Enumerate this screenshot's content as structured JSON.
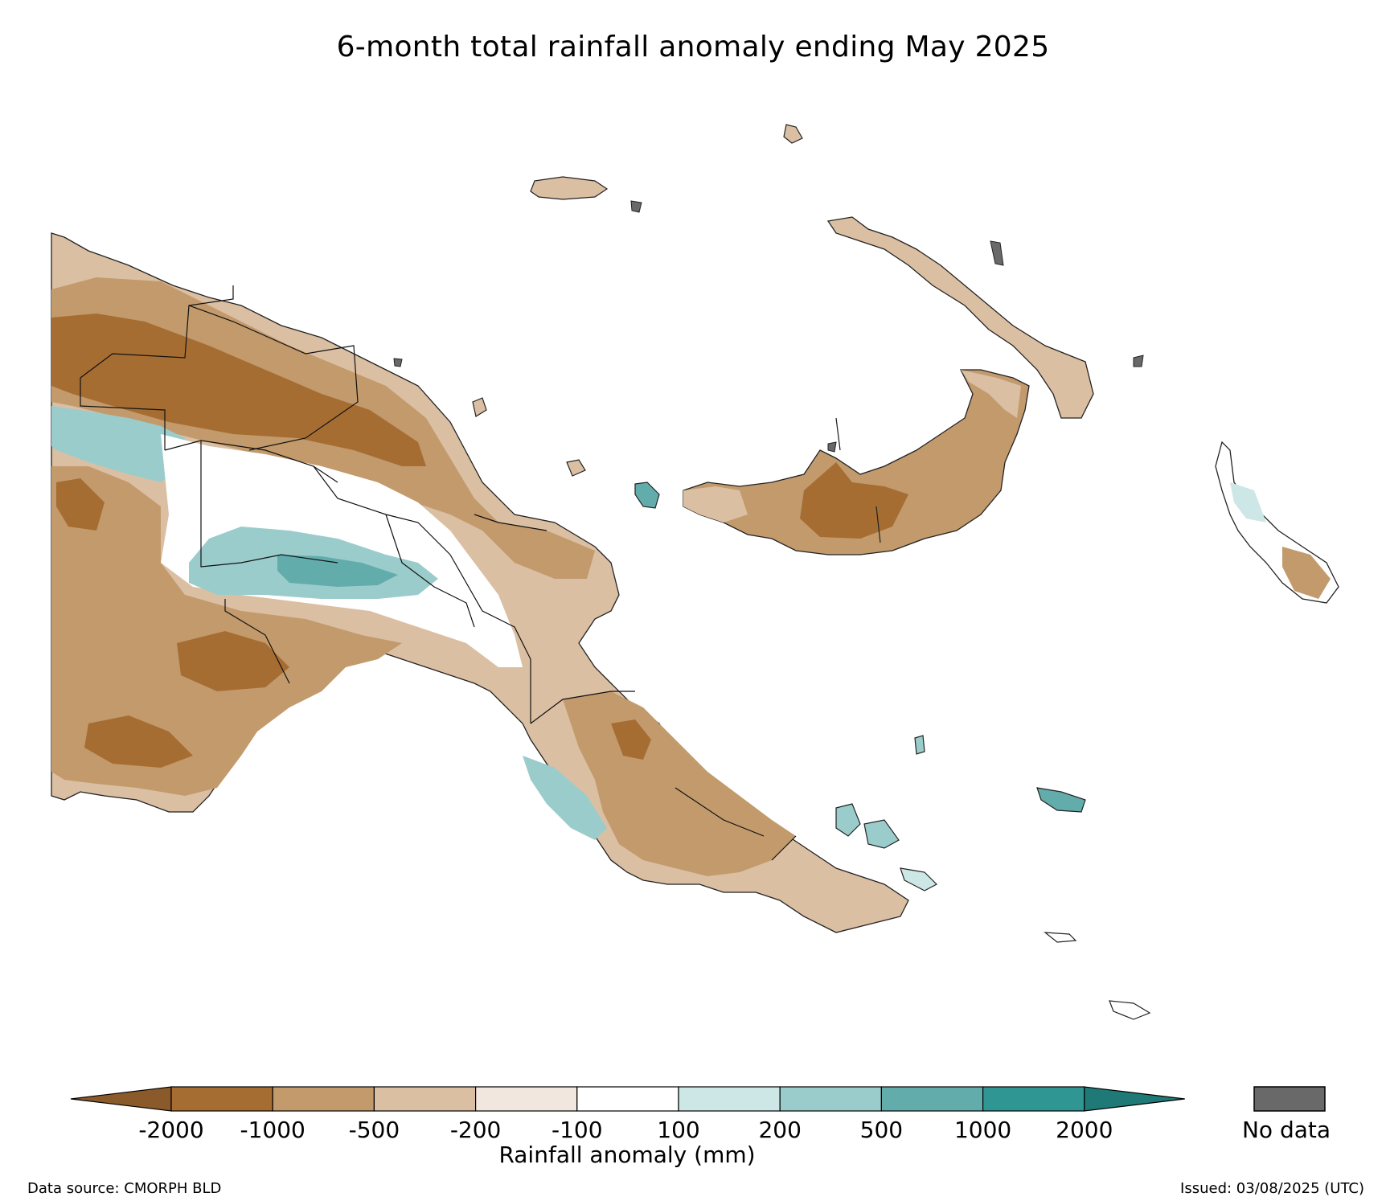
{
  "title": "6-month total rainfall anomaly ending May 2025",
  "colorbar": {
    "label": "Rainfall anomaly (mm)",
    "ticks": [
      "-2000",
      "-1000",
      "-500",
      "-200",
      "-100",
      "100",
      "200",
      "500",
      "1000",
      "2000"
    ],
    "colors": [
      "#a66d33",
      "#c29a6c",
      "#dbbfa3",
      "#f2e7de",
      "#ffffff",
      "#cde6e6",
      "#9bcccc",
      "#62adac",
      "#2f9693"
    ],
    "extend_low_color": "#8a5a2b",
    "extend_high_color": "#1f7a77",
    "no_data_label": "No data",
    "no_data_color": "#696969"
  },
  "footer": {
    "source": "Data source: CMORPH BLD",
    "issued": "Issued: 03/08/2025 (UTC)"
  }
}
